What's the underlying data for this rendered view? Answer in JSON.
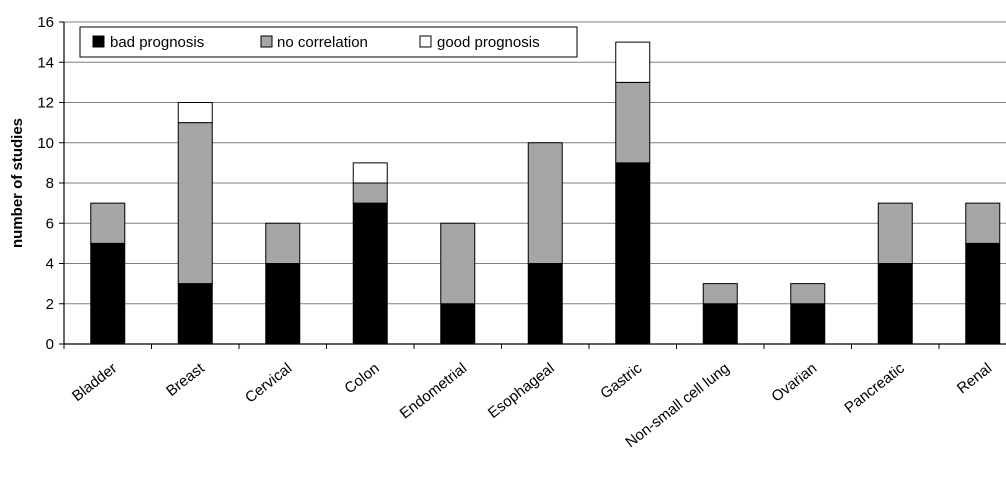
{
  "chart_data": {
    "type": "bar",
    "stacked": true,
    "title": "",
    "xlabel": "",
    "ylabel": "number of studies",
    "ylim": [
      0,
      16
    ],
    "yticks": [
      "0",
      "2",
      "4",
      "6",
      "8",
      "10",
      "12",
      "14",
      "16"
    ],
    "grid": true,
    "legend_position": "top-left",
    "categories": [
      "Bladder",
      "Breast",
      "Cervical",
      "Colon",
      "Endometrial",
      "Esophageal",
      "Gastric",
      "Non-small cell lung",
      "Ovarian",
      "Pancreatic",
      "Renal"
    ],
    "series": [
      {
        "name": "bad prognosis",
        "color": "#000000",
        "values": [
          5,
          3,
          4,
          7,
          2,
          4,
          9,
          2,
          2,
          4,
          5
        ]
      },
      {
        "name": "no correlation",
        "color": "#a6a6a6",
        "values": [
          2,
          8,
          2,
          1,
          4,
          6,
          4,
          1,
          1,
          3,
          2
        ]
      },
      {
        "name": "good prognosis",
        "color": "#ffffff",
        "values": [
          0,
          1,
          0,
          1,
          0,
          0,
          2,
          0,
          0,
          0,
          0
        ]
      }
    ]
  }
}
